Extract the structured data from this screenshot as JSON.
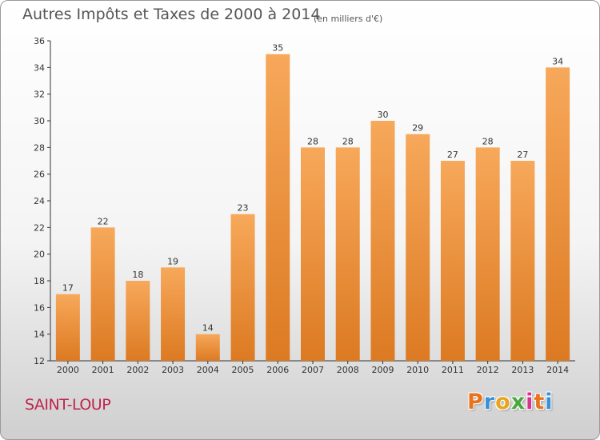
{
  "header": {
    "title": "Autres Impôts et Taxes de 2000 à 2014",
    "unit": "(en milliers d'€)"
  },
  "footer": {
    "commune": "SAINT-LOUP",
    "logo": "Proxiti"
  },
  "colors": {
    "bar_light": "#f7a85a",
    "bar_dark": "#dc7a22",
    "axis": "#333333",
    "commune_text": "#c0244d"
  },
  "chart_data": {
    "type": "bar",
    "title": "Autres Impôts et Taxes de 2000 à 2014",
    "subtitle": "(en milliers d'€)",
    "xlabel": "",
    "ylabel": "",
    "categories": [
      "2000",
      "2001",
      "2002",
      "2003",
      "2004",
      "2005",
      "2006",
      "2007",
      "2008",
      "2009",
      "2010",
      "2011",
      "2012",
      "2013",
      "2014"
    ],
    "values": [
      17,
      22,
      18,
      19,
      14,
      23,
      35,
      28,
      28,
      30,
      29,
      27,
      28,
      27,
      34
    ],
    "ylim": [
      12,
      36
    ],
    "yticks": [
      12,
      14,
      16,
      18,
      20,
      22,
      24,
      26,
      28,
      30,
      32,
      34,
      36
    ],
    "grid": false,
    "legend": "none"
  }
}
